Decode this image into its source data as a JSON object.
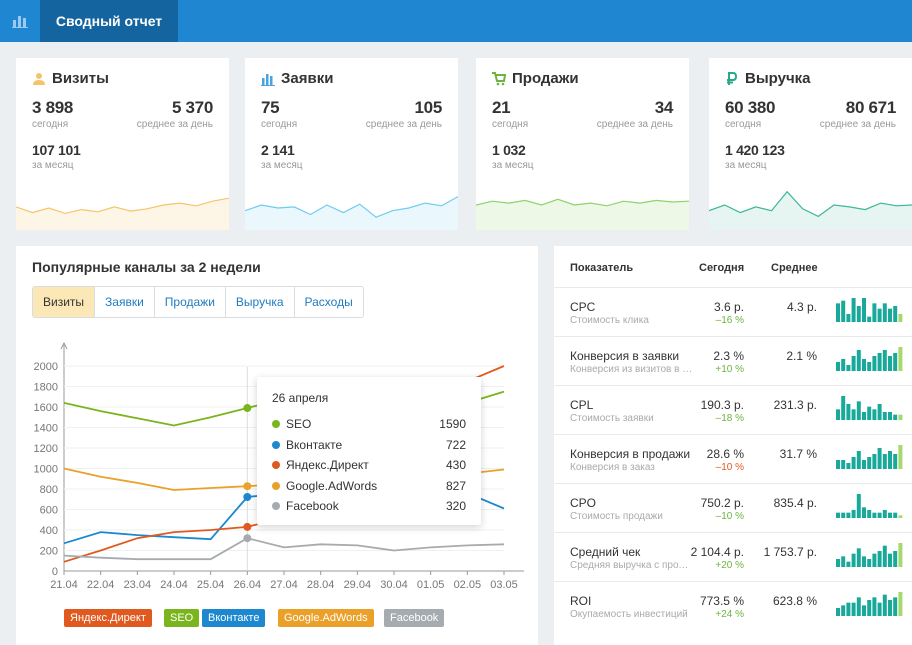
{
  "header": {
    "tab_label": "Сводный отчет",
    "logo_icon": "bar-chart-icon"
  },
  "cards": [
    {
      "title": "Визиты",
      "icon": "user-icon",
      "today": "3 898",
      "today_label": "сегодня",
      "avg": "5 370",
      "avg_label": "среднее за день",
      "month": "107 101",
      "month_label": "за месяц",
      "color": "#f3c56b",
      "fill": "#fdf6e7",
      "trend": [
        0.45,
        0.3,
        0.42,
        0.28,
        0.38,
        0.32,
        0.45,
        0.34,
        0.4,
        0.5,
        0.55,
        0.48,
        0.6,
        0.68
      ]
    },
    {
      "title": "Заявки",
      "icon": "bar-chart-icon",
      "today": "75",
      "today_label": "сегодня",
      "avg": "105",
      "avg_label": "среднее за день",
      "month": "2 141",
      "month_label": "за месяц",
      "color": "#6ccdef",
      "fill": "#eaf7fd",
      "trend": [
        0.35,
        0.5,
        0.42,
        0.45,
        0.25,
        0.5,
        0.3,
        0.52,
        0.18,
        0.35,
        0.42,
        0.55,
        0.48,
        0.72
      ]
    },
    {
      "title": "Продажи",
      "icon": "cart-icon",
      "today": "21",
      "today_label": "сегодня",
      "avg": "34",
      "avg_label": "среднее за день",
      "month": "1 032",
      "month_label": "за месяц",
      "color": "#8fd36b",
      "fill": "#edf8e6",
      "trend": [
        0.5,
        0.6,
        0.55,
        0.62,
        0.5,
        0.65,
        0.5,
        0.55,
        0.48,
        0.6,
        0.55,
        0.62,
        0.58,
        0.6
      ]
    },
    {
      "title": "Выручка",
      "icon": "ruble-icon",
      "today": "60 380",
      "today_label": "сегодня",
      "avg": "80 671",
      "avg_label": "среднее за день",
      "month": "1 420 123",
      "month_label": "за месяц",
      "color": "#3bb89a",
      "fill": "#e6f5f1",
      "trend": [
        0.35,
        0.5,
        0.3,
        0.45,
        0.35,
        0.85,
        0.4,
        0.2,
        0.5,
        0.45,
        0.38,
        0.55,
        0.48,
        0.5
      ]
    }
  ],
  "channels": {
    "title": "Популярные каналы за 2 недели",
    "tabs": [
      {
        "label": "Визиты",
        "active": true
      },
      {
        "label": "Заявки"
      },
      {
        "label": "Продажи"
      },
      {
        "label": "Выручка"
      },
      {
        "label": "Расходы"
      }
    ],
    "tooltip": {
      "date": "26 апреля",
      "rows": [
        {
          "name": "SEO",
          "value": "1590",
          "color": "#7ab51d"
        },
        {
          "name": "Вконтакте",
          "value": "722",
          "color": "#1d87cf"
        },
        {
          "name": "Яндекс.Директ",
          "value": "430",
          "color": "#e05a20"
        },
        {
          "name": "Google.AdWords",
          "value": "827",
          "color": "#eba02a"
        },
        {
          "name": "Facebook",
          "value": "320",
          "color": "#a6abaf"
        }
      ]
    },
    "legend": [
      {
        "name": "Яндекс.Директ",
        "color": "#e05a20"
      },
      {
        "name": "SEO",
        "color": "#7ab51d"
      },
      {
        "name": "Вконтакте",
        "color": "#1d87cf"
      },
      {
        "name": "Google.AdWords",
        "color": "#eba02a"
      },
      {
        "name": "Facebook",
        "color": "#a6abaf"
      }
    ]
  },
  "chart_data": {
    "type": "line",
    "x": [
      "21.04",
      "22.04",
      "23.04",
      "24.04",
      "25.04",
      "26.04",
      "27.04",
      "28.04",
      "29.04",
      "30.04",
      "01.05",
      "02.05",
      "03.05"
    ],
    "yticks": [
      0,
      200,
      400,
      600,
      800,
      1000,
      1200,
      1400,
      1600,
      1800,
      2000
    ],
    "ylim": [
      0,
      2100
    ],
    "grid": true,
    "legend_position": "bottom-left",
    "series": [
      {
        "name": "SEO",
        "color": "#7ab51d",
        "values": [
          1640,
          1560,
          1490,
          1420,
          1500,
          1590,
          1680,
          1700,
          1600,
          1560,
          1560,
          1640,
          1750
        ]
      },
      {
        "name": "Вконтакте",
        "color": "#1d87cf",
        "values": [
          270,
          380,
          350,
          330,
          310,
          722,
          760,
          830,
          870,
          930,
          910,
          760,
          610
        ]
      },
      {
        "name": "Яндекс.Директ",
        "color": "#e05a20",
        "values": [
          90,
          200,
          320,
          380,
          400,
          430,
          520,
          800,
          1050,
          1500,
          1700,
          1850,
          2000
        ]
      },
      {
        "name": "Google.AdWords",
        "color": "#eba02a",
        "values": [
          1000,
          920,
          860,
          790,
          810,
          827,
          850,
          870,
          880,
          900,
          920,
          950,
          990
        ]
      },
      {
        "name": "Facebook",
        "color": "#a6abaf",
        "values": [
          150,
          130,
          115,
          115,
          115,
          320,
          230,
          260,
          250,
          200,
          230,
          250,
          260
        ]
      }
    ]
  },
  "metrics": {
    "headers": {
      "name": "Показатель",
      "today": "Сегодня",
      "avg": "Среднее"
    },
    "rows": [
      {
        "name": "CPC",
        "sub": "Стоимость клика",
        "today": "3.6 р.",
        "change": "–16 %",
        "change_color": "#6db33f",
        "avg": "4.3 р.",
        "bars": [
          7,
          8,
          3,
          9,
          6,
          9,
          2,
          7,
          5,
          7,
          5,
          6,
          3
        ]
      },
      {
        "name": "Конверсия в заявки",
        "sub": "Конверсия из визитов в заявки",
        "today": "2.3 %",
        "change": "+10 %",
        "change_color": "#6db33f",
        "avg": "2.1 %",
        "bars": [
          3,
          4,
          2,
          5,
          7,
          4,
          3,
          5,
          6,
          7,
          5,
          6,
          8
        ]
      },
      {
        "name": "CPL",
        "sub": "Стоимость заявки",
        "today": "190.3 р.",
        "change": "–18 %",
        "change_color": "#6db33f",
        "avg": "231.3 р.",
        "bars": [
          4,
          9,
          6,
          4,
          7,
          3,
          5,
          4,
          6,
          3,
          3,
          2,
          2
        ]
      },
      {
        "name": "Конверсия в продажи",
        "sub": "Конверсия в заказ",
        "today": "28.6 %",
        "change": "–10 %",
        "change_color": "#e05a20",
        "avg": "31.7 %",
        "bars": [
          3,
          3,
          2,
          4,
          6,
          3,
          4,
          5,
          7,
          5,
          6,
          5,
          8
        ]
      },
      {
        "name": "CPO",
        "sub": "Стоимость продажи",
        "today": "750.2 р.",
        "change": "–10 %",
        "change_color": "#6db33f",
        "avg": "835.4 р.",
        "bars": [
          2,
          2,
          2,
          3,
          9,
          4,
          3,
          2,
          2,
          3,
          2,
          2,
          1
        ]
      },
      {
        "name": "Средний чек",
        "sub": "Средняя выручка с продажи",
        "today": "2 104.4 р.",
        "change": "+20 %",
        "change_color": "#6db33f",
        "avg": "1 753.7 р.",
        "bars": [
          3,
          4,
          2,
          5,
          7,
          4,
          3,
          5,
          6,
          8,
          5,
          6,
          9
        ]
      },
      {
        "name": "ROI",
        "sub": "Окупаемость инвестиций",
        "today": "773.5 %",
        "change": "+24 %",
        "change_color": "#6db33f",
        "avg": "623.8 %",
        "bars": [
          3,
          4,
          5,
          5,
          7,
          4,
          6,
          7,
          5,
          8,
          6,
          7,
          9
        ]
      }
    ]
  }
}
